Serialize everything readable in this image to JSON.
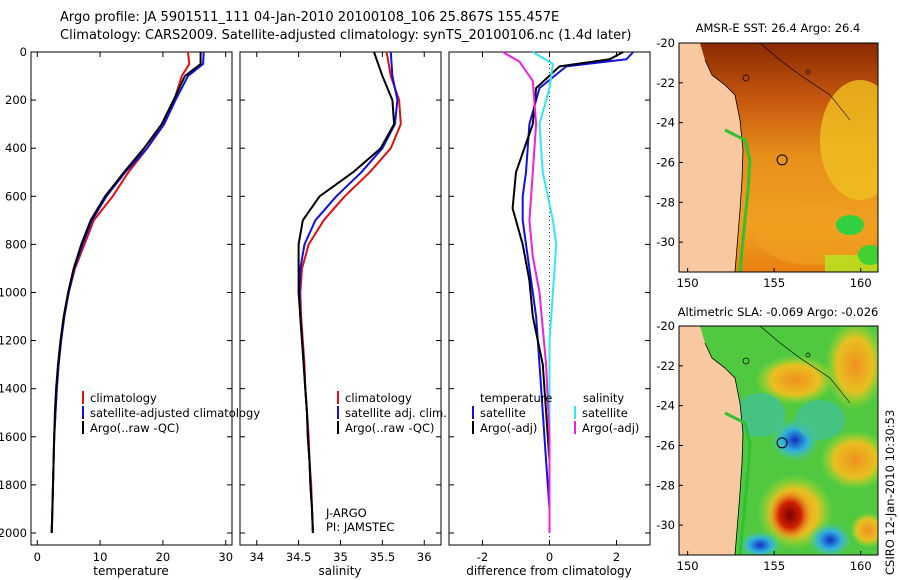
{
  "header": {
    "line1": "Argo profile: JA 5901511_111 04-Jan-2010 20100108_106 25.867S 155.457E",
    "line2": "Climatology: CARS2009. Satellite-adjusted climatology: synTS_20100106.nc (1.4d later)"
  },
  "side_label": "CSIRO 12-Jan-2010 10:30:53",
  "colors": {
    "climatology": "#e01010",
    "satellite": "#1010e0",
    "argo": "#000000",
    "sal_sat": "#30e8f0",
    "sal_argo": "#f020e0",
    "land": "#f8c8a0"
  },
  "chart_data": [
    {
      "type": "line",
      "id": "temperature",
      "xlabel": "temperature",
      "ylabel": "",
      "xlim": [
        -1,
        31
      ],
      "ylim": [
        2050,
        0
      ],
      "xticks": [
        0,
        10,
        20,
        30
      ],
      "yticks": [
        0,
        200,
        400,
        600,
        800,
        1000,
        1200,
        1400,
        1600,
        1800,
        2000
      ],
      "legend": [
        "climatology",
        "satellite-adjusted climatology",
        "Argo(..raw -QC)"
      ],
      "legend_position": "lower-center",
      "series": [
        {
          "name": "climatology",
          "color": "#e01010",
          "x": [
            24.0,
            24.2,
            23.0,
            21.8,
            20.0,
            17.5,
            14.5,
            12.0,
            9.0,
            7.5,
            6.0,
            5.0,
            4.3,
            3.8,
            3.4,
            3.1,
            2.9,
            2.7,
            2.6,
            2.5,
            2.4,
            2.3
          ],
          "y": [
            0,
            50,
            100,
            200,
            300,
            400,
            500,
            600,
            700,
            800,
            900,
            1000,
            1100,
            1200,
            1300,
            1400,
            1500,
            1600,
            1700,
            1800,
            1900,
            2000
          ]
        },
        {
          "name": "satellite-adjusted climatology",
          "color": "#1010e0",
          "x": [
            26.5,
            26.4,
            24.0,
            22.0,
            20.2,
            17.5,
            14.0,
            11.0,
            8.7,
            7.2,
            5.9,
            5.0,
            4.3,
            3.8,
            3.4,
            3.1,
            2.9,
            2.7,
            2.6,
            2.5,
            2.4,
            2.3
          ],
          "y": [
            0,
            50,
            100,
            200,
            300,
            400,
            500,
            600,
            700,
            800,
            900,
            1000,
            1100,
            1200,
            1300,
            1400,
            1500,
            1600,
            1700,
            1800,
            1900,
            2000
          ]
        },
        {
          "name": "Argo(..raw -QC)",
          "color": "#000000",
          "x": [
            26.0,
            26.0,
            23.5,
            21.7,
            19.8,
            17.0,
            13.8,
            10.8,
            8.5,
            7.0,
            5.8,
            4.9,
            4.2,
            3.7,
            3.3,
            3.0,
            2.8,
            2.7,
            2.6,
            2.5,
            2.4,
            2.3
          ],
          "y": [
            0,
            50,
            100,
            200,
            300,
            400,
            500,
            600,
            700,
            800,
            900,
            1000,
            1100,
            1200,
            1300,
            1400,
            1500,
            1600,
            1700,
            1800,
            1900,
            2000
          ]
        }
      ]
    },
    {
      "type": "line",
      "id": "salinity",
      "xlabel": "salinity",
      "xlim": [
        33.8,
        36.2
      ],
      "ylim": [
        2050,
        0
      ],
      "xticks": [
        34,
        34.5,
        35,
        35.5,
        36
      ],
      "annotation": [
        "J-ARGO",
        "PI: JAMSTEC"
      ],
      "legend": [
        "climatology",
        "satellite adj. clim.",
        "Argo(..raw -QC)"
      ],
      "legend_position": "lower-center",
      "series": [
        {
          "name": "climatology",
          "color": "#e01010",
          "x": [
            35.55,
            35.6,
            35.7,
            35.72,
            35.6,
            35.35,
            35.05,
            34.8,
            34.62,
            34.54,
            34.52,
            34.53,
            34.55,
            34.57,
            34.58,
            34.6,
            34.62,
            34.63,
            34.65,
            34.66,
            34.67
          ],
          "y": [
            0,
            100,
            200,
            300,
            400,
            500,
            600,
            700,
            800,
            900,
            1000,
            1100,
            1200,
            1300,
            1400,
            1500,
            1600,
            1700,
            1800,
            1900,
            2000
          ]
        },
        {
          "name": "satellite adj. clim.",
          "color": "#1010e0",
          "x": [
            35.6,
            35.62,
            35.68,
            35.65,
            35.5,
            35.25,
            34.95,
            34.7,
            34.57,
            34.52,
            34.51,
            34.52,
            34.54,
            34.56,
            34.58,
            34.6,
            34.61,
            34.63,
            34.64,
            34.66,
            34.67
          ],
          "y": [
            0,
            100,
            200,
            300,
            400,
            500,
            600,
            700,
            800,
            900,
            1000,
            1100,
            1200,
            1300,
            1400,
            1500,
            1600,
            1700,
            1800,
            1900,
            2000
          ]
        },
        {
          "name": "Argo(..raw -QC)",
          "color": "#000000",
          "x": [
            35.4,
            35.5,
            35.62,
            35.64,
            35.48,
            35.15,
            34.75,
            34.55,
            34.5,
            34.5,
            34.5,
            34.52,
            34.54,
            34.56,
            34.58,
            34.6,
            34.61,
            34.63,
            34.64,
            34.66,
            34.67
          ],
          "y": [
            0,
            100,
            200,
            300,
            400,
            500,
            600,
            700,
            800,
            900,
            1000,
            1100,
            1200,
            1300,
            1400,
            1500,
            1600,
            1700,
            1800,
            1900,
            2000
          ]
        }
      ]
    },
    {
      "type": "line",
      "id": "difference",
      "xlabel": "difference from climatology",
      "xlim": [
        -3.0,
        3.0
      ],
      "ylim": [
        2050,
        0
      ],
      "xticks": [
        -2,
        0,
        2
      ],
      "legend": [
        "temperature",
        "satellite",
        "Argo(-adj)",
        "salinity",
        "satellite",
        "Argo(-adj)"
      ],
      "legend_position": "lower-center",
      "series": [
        {
          "name": "temperature satellite",
          "color": "#1010e0",
          "x": [
            2.5,
            2.3,
            0.5,
            -0.3,
            -0.6,
            -0.7,
            -0.8,
            -0.8,
            -0.7,
            -0.6,
            -0.5,
            -0.4,
            -0.3,
            -0.2,
            -0.1,
            0,
            0
          ],
          "y": [
            0,
            30,
            60,
            150,
            300,
            500,
            600,
            700,
            800,
            900,
            1000,
            1100,
            1300,
            1500,
            1700,
            1900,
            2000
          ]
        },
        {
          "name": "temperature Argo(-adj)",
          "color": "#000000",
          "x": [
            2.2,
            1.8,
            0.3,
            -0.4,
            -0.5,
            -1.0,
            -1.1,
            -0.8,
            -0.6,
            -0.5,
            -0.2,
            0,
            0
          ],
          "y": [
            0,
            30,
            60,
            150,
            300,
            500,
            650,
            800,
            950,
            1100,
            1300,
            1700,
            2000
          ]
        },
        {
          "name": "salinity satellite",
          "color": "#30e8f0",
          "x": [
            -0.5,
            0.1,
            0.0,
            -0.3,
            -0.2,
            0.1,
            0.2,
            0.1,
            0.0,
            0,
            0
          ],
          "y": [
            0,
            50,
            150,
            300,
            500,
            700,
            800,
            1000,
            1200,
            1600,
            2000
          ]
        },
        {
          "name": "salinity Argo(-adj)",
          "color": "#f020e0",
          "x": [
            -1.4,
            -0.9,
            -0.5,
            -0.4,
            -0.5,
            -0.6,
            -0.5,
            -0.3,
            -0.1,
            0,
            0
          ],
          "y": [
            0,
            40,
            120,
            300,
            500,
            700,
            850,
            1000,
            1300,
            1600,
            2000
          ]
        }
      ]
    },
    {
      "type": "heatmap",
      "id": "sst-map",
      "title": "AMSR-E SST: 26.4 Argo: 26.4",
      "xlim": [
        149.5,
        161
      ],
      "ylim": [
        -31.5,
        -20
      ],
      "xticks": [
        150,
        155,
        160
      ],
      "yticks": [
        -20,
        -22,
        -24,
        -26,
        -28,
        -30
      ],
      "marker": {
        "lon": 155.457,
        "lat": -25.867
      }
    },
    {
      "type": "heatmap",
      "id": "sla-map",
      "title": "Altimetric SLA: -0.069 Argo: -0.026",
      "xlim": [
        149.5,
        161
      ],
      "ylim": [
        -31.5,
        -20
      ],
      "xticks": [
        150,
        155,
        160
      ],
      "yticks": [
        -20,
        -22,
        -24,
        -26,
        -28,
        -30
      ],
      "marker": {
        "lon": 155.457,
        "lat": -25.867
      }
    }
  ]
}
